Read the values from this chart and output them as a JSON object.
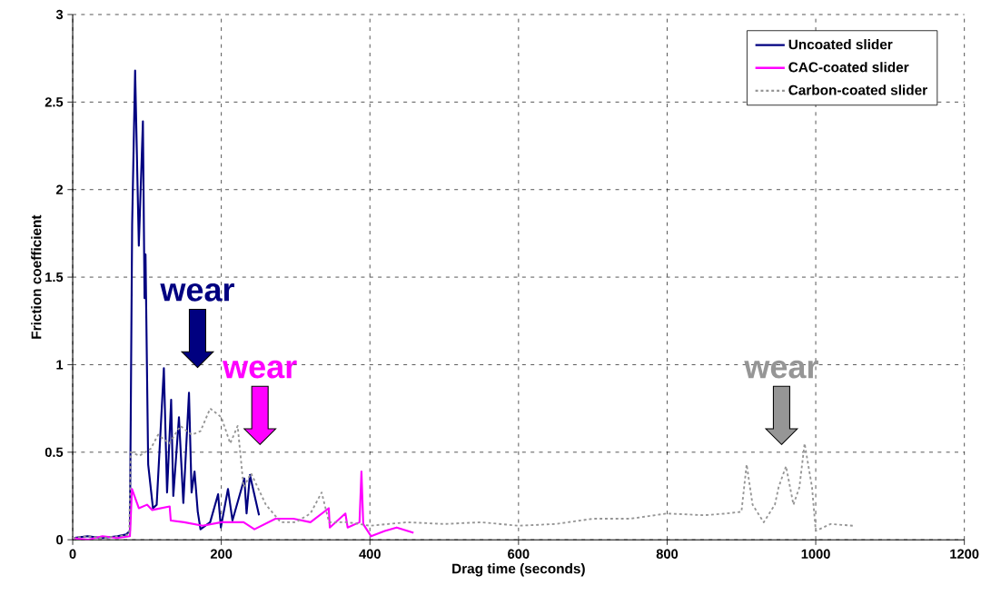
{
  "chart_data": {
    "type": "line",
    "xlabel": "Drag time (seconds)",
    "ylabel": "Friction coefficient",
    "xlim": [
      0,
      1200
    ],
    "xticks": [
      0,
      200,
      400,
      600,
      800,
      1000,
      1200
    ],
    "ylim": [
      0,
      3
    ],
    "yticks": [
      0,
      0.5,
      1,
      1.5,
      2,
      2.5,
      3
    ],
    "grid": true,
    "legend": "top right",
    "marker": "none",
    "series": [
      {
        "name": "Uncoated slider",
        "color": "#000080",
        "line_style": "solid",
        "x": [
          0,
          20,
          40,
          60,
          72,
          77,
          80,
          84,
          89,
          94.5,
          96.7,
          98,
          101.6,
          108,
          113,
          122.7,
          127,
          132.5,
          135.4,
          143,
          148.9,
          156.5,
          160,
          164,
          168.3,
          172,
          185,
          195.7,
          199.4,
          209,
          215,
          231,
          234,
          238.5,
          250.8
        ],
        "values": [
          0.01,
          0.02,
          0.01,
          0.02,
          0.03,
          0.05,
          1.8,
          2.68,
          1.68,
          2.39,
          1.38,
          1.63,
          0.43,
          0.18,
          0.2,
          0.98,
          0.27,
          0.8,
          0.25,
          0.7,
          0.21,
          0.84,
          0.27,
          0.39,
          0.16,
          0.06,
          0.1,
          0.26,
          0.07,
          0.29,
          0.11,
          0.35,
          0.15,
          0.37,
          0.14
        ]
      },
      {
        "name": "CAC-coated slider",
        "color": "#ff00ff",
        "line_style": "solid",
        "x": [
          0,
          20,
          40,
          60,
          77,
          79.8,
          89,
          100,
          107,
          130.5,
          132,
          150,
          175,
          200,
          230,
          244.6,
          273,
          297,
          320,
          344.6,
          346,
          367,
          370,
          386,
          388.6,
          391,
          401.6,
          420,
          436,
          458.7
        ],
        "values": [
          0.01,
          0.0,
          0.02,
          0.01,
          0.02,
          0.29,
          0.18,
          0.2,
          0.17,
          0.19,
          0.11,
          0.1,
          0.08,
          0.1,
          0.1,
          0.06,
          0.12,
          0.12,
          0.1,
          0.18,
          0.07,
          0.15,
          0.07,
          0.1,
          0.39,
          0.09,
          0.02,
          0.05,
          0.07,
          0.04
        ]
      },
      {
        "name": "Carbon-coated slider",
        "color": "#969696",
        "line_style": "dashed",
        "x": [
          0,
          20,
          40,
          60,
          76,
          78,
          90,
          105,
          115,
          130,
          145,
          160,
          172,
          185,
          200,
          212,
          222,
          230,
          240,
          260,
          280,
          300,
          320,
          335,
          345,
          370,
          400,
          450,
          500,
          550,
          600,
          650,
          700,
          750,
          800,
          850,
          880,
          900,
          907,
          915,
          930,
          945,
          950,
          960,
          970,
          978,
          985,
          995,
          1000,
          1020,
          1050
        ],
        "values": [
          0.01,
          0.02,
          0.01,
          0.02,
          0.03,
          0.5,
          0.48,
          0.52,
          0.6,
          0.55,
          0.65,
          0.6,
          0.62,
          0.75,
          0.7,
          0.55,
          0.65,
          0.3,
          0.38,
          0.2,
          0.1,
          0.1,
          0.15,
          0.27,
          0.1,
          0.1,
          0.08,
          0.1,
          0.09,
          0.1,
          0.08,
          0.09,
          0.12,
          0.12,
          0.15,
          0.14,
          0.15,
          0.16,
          0.43,
          0.2,
          0.1,
          0.2,
          0.3,
          0.42,
          0.2,
          0.3,
          0.55,
          0.3,
          0.05,
          0.09,
          0.08
        ]
      }
    ],
    "annotations": [
      "wear",
      "wear",
      "wear"
    ]
  }
}
